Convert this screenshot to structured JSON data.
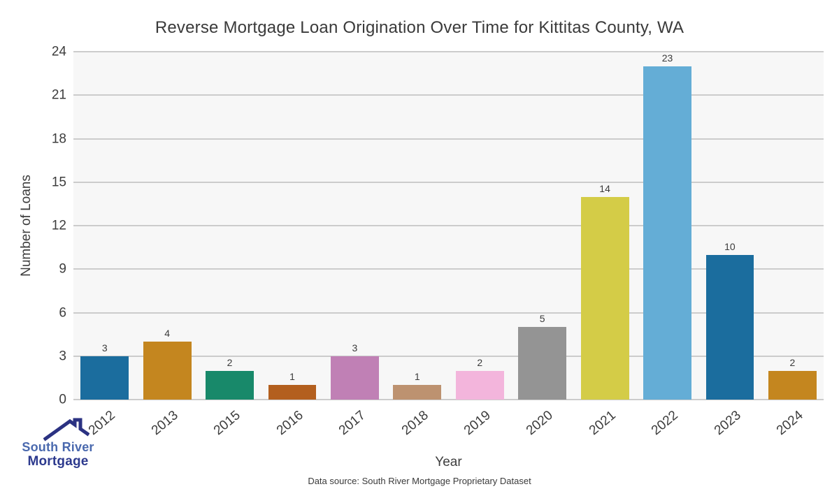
{
  "title": "Reverse Mortgage Loan Origination Over Time for Kittitas County, WA",
  "chart_data": {
    "type": "bar",
    "title": "Reverse Mortgage Loan Origination Over Time for Kittitas County, WA",
    "categories": [
      "2012",
      "2013",
      "2015",
      "2016",
      "2017",
      "2018",
      "2019",
      "2020",
      "2021",
      "2022",
      "2023",
      "2024"
    ],
    "values": [
      3,
      4,
      2,
      1,
      3,
      1,
      2,
      5,
      14,
      23,
      10,
      2
    ],
    "bar_colors": [
      "#1b6d9e",
      "#c4861f",
      "#18896a",
      "#b35f1e",
      "#c080b5",
      "#bd9270",
      "#f3b5dc",
      "#949494",
      "#d4cc47",
      "#64add6",
      "#1b6d9e",
      "#c4861f"
    ],
    "xlabel": "Year",
    "ylabel": "Number of Loans",
    "ylim": [
      0,
      24
    ],
    "yticks": [
      0,
      3,
      6,
      9,
      12,
      15,
      18,
      21,
      24
    ],
    "grid": "horizontal",
    "legend": "none",
    "plot_background": "#f7f7f7",
    "gridline_color": "#cccccc"
  },
  "footer": {
    "data_source": "Data source: South River Mortgage Proprietary Dataset"
  },
  "logo": {
    "line1": "South River",
    "line2": "Mortgage",
    "line1_color": "#4a69ae",
    "line2_color": "#2d3a8e",
    "roof_color": "#2b3282"
  }
}
